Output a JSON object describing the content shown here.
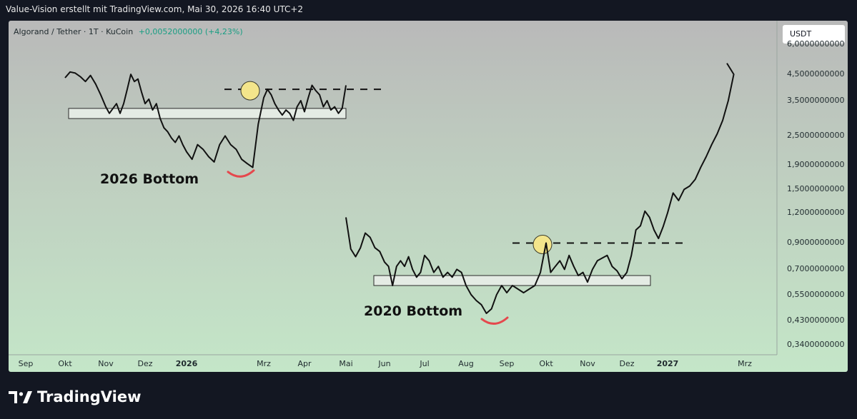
{
  "header": {
    "text": "Value-Vision erstellt mit TradingView.com, Mai 30, 2026 16:40 UTC+2"
  },
  "legend": {
    "symbol": "Algorand / Tether · 1T · KuCoin",
    "change": "+0,0052000000 (+4,23%)"
  },
  "currency_button": "USDT",
  "annotations": {
    "bottom_2026": "2026 Bottom",
    "bottom_2020": "2020 Bottom"
  },
  "logo": {
    "text": "TradingView"
  },
  "colors": {
    "price_line": "#111111",
    "accent_arc": "#e5484d",
    "circle_fill": "#f3e58b",
    "change_text": "#189e83"
  },
  "chart_data": {
    "type": "line",
    "y_scale": "log",
    "ylim": [
      0.31,
      6.2
    ],
    "x_ticks": [
      "Sep",
      "Okt",
      "Nov",
      "Dez",
      "2026",
      "Mrz",
      "Apr",
      "Mai",
      "Jun",
      "Jul",
      "Aug",
      "Sep",
      "Okt",
      "Nov",
      "Dez",
      "2027",
      "Mrz"
    ],
    "y_ticks": [
      {
        "v": 6.0,
        "label": "6,0000000000"
      },
      {
        "v": 4.5,
        "label": "4,5000000000"
      },
      {
        "v": 3.5,
        "label": "3,5000000000"
      },
      {
        "v": 2.5,
        "label": "2,5000000000"
      },
      {
        "v": 1.9,
        "label": "1,9000000000"
      },
      {
        "v": 1.5,
        "label": "1,5000000000"
      },
      {
        "v": 1.2,
        "label": "1,2000000000"
      },
      {
        "v": 0.9,
        "label": "0,9000000000"
      },
      {
        "v": 0.7,
        "label": "0,7000000000"
      },
      {
        "v": 0.55,
        "label": "0,5500000000"
      },
      {
        "v": 0.43,
        "label": "0,4300000000"
      },
      {
        "v": 0.34,
        "label": "0,3400000000"
      }
    ],
    "series": [
      {
        "points": [
          [
            "Okt",
            4.35
          ],
          [
            "Okt",
            4.6
          ],
          [
            "Okt",
            4.55
          ],
          [
            "Okt",
            4.4
          ],
          [
            "Okt",
            4.2
          ],
          [
            "Okt",
            4.45
          ],
          [
            "Okt",
            4.1
          ],
          [
            "Okt",
            3.7
          ],
          [
            "Nov",
            3.3
          ],
          [
            "Nov",
            3.1
          ],
          [
            "Nov",
            3.25
          ],
          [
            "Nov",
            3.4
          ],
          [
            "Nov",
            3.1
          ],
          [
            "Nov",
            3.4
          ],
          [
            "Nov",
            3.9
          ],
          [
            "Nov",
            4.5
          ],
          [
            "Nov",
            4.2
          ],
          [
            "Nov",
            4.3
          ],
          [
            "Nov",
            3.8
          ],
          [
            "Dez",
            3.4
          ],
          [
            "Dez",
            3.55
          ],
          [
            "Dez",
            3.2
          ],
          [
            "Dez",
            3.4
          ],
          [
            "Dez",
            2.95
          ],
          [
            "Dez",
            2.7
          ],
          [
            "Dez",
            2.6
          ],
          [
            "Dez",
            2.45
          ],
          [
            "Dez",
            2.35
          ],
          [
            "Dez",
            2.5
          ],
          [
            "Dez",
            2.3
          ],
          [
            "2026",
            2.15
          ],
          [
            "2026",
            2.0
          ],
          [
            "2026",
            2.3
          ],
          [
            "2026",
            2.2
          ],
          [
            "2026",
            2.05
          ],
          [
            "2026",
            1.95
          ],
          [
            "2026",
            2.3
          ],
          [
            "2026",
            2.5
          ],
          [
            "2026",
            2.3
          ],
          [
            "2026",
            2.2
          ],
          [
            "2026",
            2.0
          ],
          [
            "2026",
            1.92
          ],
          [
            "2026",
            1.85
          ],
          [
            "2026",
            2.8
          ],
          [
            "Mrz",
            3.6
          ],
          [
            "Mrz",
            3.9
          ],
          [
            "Mrz",
            3.7
          ],
          [
            "Mrz",
            3.4
          ],
          [
            "Mrz",
            3.2
          ],
          [
            "Mrz",
            3.05
          ],
          [
            "Mrz",
            3.2
          ],
          [
            "Mrz",
            3.1
          ],
          [
            "Mrz",
            2.9
          ],
          [
            "Mrz",
            3.3
          ],
          [
            "Mrz",
            3.5
          ],
          [
            "Apr",
            3.15
          ],
          [
            "Apr",
            3.6
          ],
          [
            "Apr",
            4.05
          ],
          [
            "Apr",
            3.85
          ],
          [
            "Apr",
            3.7
          ],
          [
            "Apr",
            3.3
          ],
          [
            "Apr",
            3.5
          ],
          [
            "Apr",
            3.2
          ],
          [
            "Apr",
            3.3
          ],
          [
            "Apr",
            3.1
          ],
          [
            "Apr",
            3.25
          ],
          [
            "Mai",
            4.05
          ]
        ]
      },
      {
        "points": [
          [
            "Mai",
            1.15
          ],
          [
            "Mai",
            0.85
          ],
          [
            "Mai",
            0.79
          ],
          [
            "Mai",
            0.86
          ],
          [
            "Mai",
            0.99
          ],
          [
            "Mai",
            0.95
          ],
          [
            "Mai",
            0.86
          ],
          [
            "Mai",
            0.83
          ],
          [
            "Jun",
            0.75
          ],
          [
            "Jun",
            0.72
          ],
          [
            "Jun",
            0.6
          ],
          [
            "Jun",
            0.72
          ],
          [
            "Jun",
            0.76
          ],
          [
            "Jun",
            0.72
          ],
          [
            "Jun",
            0.79
          ],
          [
            "Jun",
            0.7
          ],
          [
            "Jun",
            0.65
          ],
          [
            "Jun",
            0.68
          ],
          [
            "Jul",
            0.8
          ],
          [
            "Jul",
            0.76
          ],
          [
            "Jul",
            0.68
          ],
          [
            "Jul",
            0.72
          ],
          [
            "Jul",
            0.65
          ],
          [
            "Jul",
            0.68
          ],
          [
            "Jul",
            0.65
          ],
          [
            "Jul",
            0.7
          ],
          [
            "Jul",
            0.68
          ],
          [
            "Aug",
            0.6
          ],
          [
            "Aug",
            0.55
          ],
          [
            "Aug",
            0.52
          ],
          [
            "Aug",
            0.5
          ],
          [
            "Aug",
            0.46
          ],
          [
            "Aug",
            0.48
          ],
          [
            "Aug",
            0.55
          ],
          [
            "Aug",
            0.6
          ],
          [
            "Sep",
            0.56
          ],
          [
            "Sep",
            0.6
          ],
          [
            "Sep",
            0.58
          ],
          [
            "Sep",
            0.56
          ],
          [
            "Sep",
            0.58
          ],
          [
            "Sep",
            0.6
          ],
          [
            "Sep",
            0.68
          ],
          [
            "Okt",
            0.9
          ],
          [
            "Okt",
            0.68
          ],
          [
            "Okt",
            0.72
          ],
          [
            "Okt",
            0.76
          ],
          [
            "Okt",
            0.7
          ],
          [
            "Okt",
            0.8
          ],
          [
            "Okt",
            0.72
          ],
          [
            "Okt",
            0.66
          ],
          [
            "Okt",
            0.68
          ],
          [
            "Nov",
            0.62
          ],
          [
            "Nov",
            0.7
          ],
          [
            "Nov",
            0.76
          ],
          [
            "Nov",
            0.78
          ],
          [
            "Nov",
            0.8
          ],
          [
            "Nov",
            0.72
          ],
          [
            "Nov",
            0.69
          ],
          [
            "Nov",
            0.64
          ],
          [
            "Dez",
            0.68
          ],
          [
            "Dez",
            0.8
          ],
          [
            "Dez",
            1.02
          ],
          [
            "Dez",
            1.06
          ],
          [
            "Dez",
            1.22
          ],
          [
            "Dez",
            1.15
          ],
          [
            "Dez",
            1.02
          ],
          [
            "Dez",
            0.94
          ],
          [
            "Dez",
            1.05
          ],
          [
            "2027",
            1.2
          ],
          [
            "2027",
            1.45
          ],
          [
            "2027",
            1.35
          ],
          [
            "2027",
            1.5
          ],
          [
            "2027",
            1.55
          ],
          [
            "2027",
            1.65
          ],
          [
            "2027",
            1.85
          ],
          [
            "2027",
            2.05
          ],
          [
            "2027",
            2.3
          ],
          [
            "2027",
            2.55
          ],
          [
            "2027",
            2.9
          ],
          [
            "2027",
            3.5
          ],
          [
            "2027",
            4.5
          ],
          [
            "2027",
            5.0
          ]
        ]
      }
    ],
    "support_boxes": [
      {
        "from": "Sep",
        "to": "Mai",
        "low": 2.95,
        "high": 3.25
      },
      {
        "from": "Jun",
        "to": "Dez",
        "low": 0.6,
        "high": 0.66
      }
    ],
    "resistance_lines": [
      {
        "from": "Mrz",
        "to": "Mai",
        "value": 3.9
      },
      {
        "from": "Sep",
        "to": "2027",
        "value": 0.9
      }
    ],
    "circle_markers": [
      {
        "x": "Mrz",
        "y": 3.9
      },
      {
        "x": "Okt",
        "y": 0.9
      }
    ],
    "bottom_arcs": [
      {
        "x": "2026",
        "y": 1.75
      },
      {
        "x": "Aug",
        "y": 0.43
      }
    ]
  }
}
